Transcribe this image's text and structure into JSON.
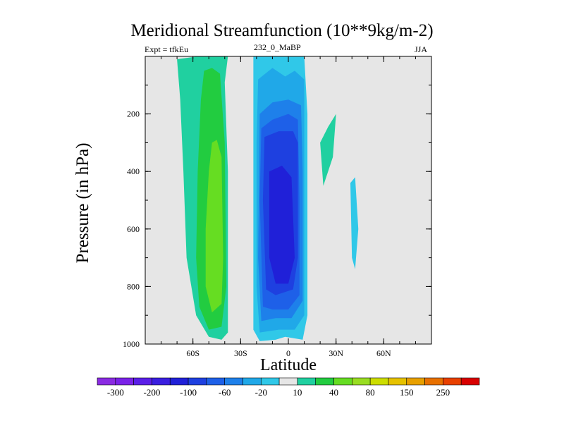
{
  "chart_data": {
    "type": "heatmap",
    "title": "Meridional Streamfunction (10**9kg/m-2)",
    "subtitle_left": "Expt = tfkEu",
    "subtitle_center": "232_0_MaBP",
    "subtitle_right": "JJA",
    "xlabel": "Latitude",
    "ylabel": "Pressure (in hPa)",
    "x_ticks": [
      {
        "value": -60,
        "label": "60S"
      },
      {
        "value": -30,
        "label": "30S"
      },
      {
        "value": 0,
        "label": "0"
      },
      {
        "value": 30,
        "label": "30N"
      },
      {
        "value": 60,
        "label": "60N"
      }
    ],
    "y_ticks": [
      {
        "value": 200,
        "label": "200"
      },
      {
        "value": 400,
        "label": "400"
      },
      {
        "value": 600,
        "label": "600"
      },
      {
        "value": 800,
        "label": "800"
      },
      {
        "value": 1000,
        "label": "1000"
      }
    ],
    "xlim": [
      -90,
      90
    ],
    "ylim": [
      1000,
      0
    ],
    "background_color": "#e6e6e6",
    "colorbar": {
      "levels": [
        -300,
        -250,
        -200,
        -150,
        -100,
        -80,
        -60,
        -40,
        -20,
        -10,
        10,
        20,
        40,
        60,
        80,
        100,
        150,
        200,
        250,
        300
      ],
      "colors": [
        "#8a2be2",
        "#7a22e8",
        "#5a1ee8",
        "#3a1ee0",
        "#2020d8",
        "#1e40e0",
        "#1e60e8",
        "#1e80ea",
        "#20a8e8",
        "#30c8e8",
        "#e6e6e6",
        "#20d0a0",
        "#22cc40",
        "#66dd22",
        "#99dd22",
        "#ccdd00",
        "#e6c200",
        "#e8a000",
        "#e87000",
        "#e84000",
        "#d80000"
      ],
      "labels": [
        {
          "after_index": 0,
          "label": "-300"
        },
        {
          "after_index": 2,
          "label": "-200"
        },
        {
          "after_index": 4,
          "label": "-100"
        },
        {
          "after_index": 6,
          "label": "-60"
        },
        {
          "after_index": 8,
          "label": "-20"
        },
        {
          "after_index": 10,
          "label": "10"
        },
        {
          "after_index": 12,
          "label": "40"
        },
        {
          "after_index": 14,
          "label": "80"
        },
        {
          "after_index": 16,
          "label": "150"
        },
        {
          "after_index": 18,
          "label": "250"
        }
      ]
    },
    "cells": [
      {
        "name": "southern-positive-cell",
        "values": [
          {
            "level": 10,
            "poly": [
              [
                -70,
                10
              ],
              [
                -57,
                0
              ],
              [
                -38,
                0
              ],
              [
                -40,
                90
              ],
              [
                -38,
                400
              ],
              [
                -38,
                960
              ],
              [
                -42,
                985
              ],
              [
                -50,
                975
              ],
              [
                -58,
                900
              ],
              [
                -64,
                700
              ],
              [
                -66,
                400
              ],
              [
                -68,
                150
              ],
              [
                -70,
                10
              ]
            ]
          },
          {
            "level": 20,
            "poly": [
              [
                -53,
                50
              ],
              [
                -48,
                40
              ],
              [
                -43,
                60
              ],
              [
                -40,
                300
              ],
              [
                -39,
                800
              ],
              [
                -42,
                940
              ],
              [
                -50,
                950
              ],
              [
                -56,
                870
              ],
              [
                -58,
                700
              ],
              [
                -57,
                400
              ],
              [
                -55,
                150
              ],
              [
                -53,
                50
              ]
            ]
          },
          {
            "level": 40,
            "poly": [
              [
                -48,
                300
              ],
              [
                -45,
                290
              ],
              [
                -42,
                350
              ],
              [
                -41,
                700
              ],
              [
                -42,
                860
              ],
              [
                -48,
                890
              ],
              [
                -52,
                800
              ],
              [
                -52,
                600
              ],
              [
                -50,
                400
              ],
              [
                -48,
                300
              ]
            ]
          }
        ]
      },
      {
        "name": "northern-positive-blob",
        "values": [
          {
            "level": 10,
            "poly": [
              [
                20,
                300
              ],
              [
                25,
                245
              ],
              [
                30,
                200
              ],
              [
                28,
                350
              ],
              [
                22,
                450
              ],
              [
                20,
                300
              ]
            ]
          }
        ]
      },
      {
        "name": "southern-negative-cell",
        "values": [
          {
            "level": -10,
            "poly": [
              [
                -22,
                0
              ],
              [
                10,
                0
              ],
              [
                12,
                200
              ],
              [
                12,
                900
              ],
              [
                9,
                985
              ],
              [
                -2,
                975
              ],
              [
                -8,
                985
              ],
              [
                -18,
                990
              ],
              [
                -22,
                950
              ],
              [
                -22,
                600
              ],
              [
                -22,
                200
              ],
              [
                -22,
                0
              ]
            ]
          },
          {
            "level": -20,
            "poly": [
              [
                -19,
                80
              ],
              [
                -10,
                40
              ],
              [
                -2,
                70
              ],
              [
                4,
                50
              ],
              [
                10,
                80
              ],
              [
                10,
                500
              ],
              [
                10,
                900
              ],
              [
                4,
                950
              ],
              [
                -6,
                950
              ],
              [
                -18,
                960
              ],
              [
                -20,
                800
              ],
              [
                -20,
                300
              ],
              [
                -19,
                80
              ]
            ]
          },
          {
            "level": -40,
            "poly": [
              [
                -18,
                200
              ],
              [
                -10,
                160
              ],
              [
                0,
                150
              ],
              [
                8,
                170
              ],
              [
                9,
                400
              ],
              [
                9,
                850
              ],
              [
                2,
                910
              ],
              [
                -8,
                910
              ],
              [
                -17,
                920
              ],
              [
                -19,
                700
              ],
              [
                -18,
                200
              ]
            ]
          },
          {
            "level": -60,
            "poly": [
              [
                -17,
                250
              ],
              [
                -10,
                220
              ],
              [
                0,
                200
              ],
              [
                6,
                220
              ],
              [
                7,
                500
              ],
              [
                7,
                830
              ],
              [
                0,
                880
              ],
              [
                -10,
                880
              ],
              [
                -16,
                870
              ],
              [
                -18,
                500
              ],
              [
                -17,
                250
              ]
            ]
          },
          {
            "level": -80,
            "poly": [
              [
                -15,
                280
              ],
              [
                -6,
                260
              ],
              [
                3,
                260
              ],
              [
                6,
                300
              ],
              [
                6,
                700
              ],
              [
                3,
                810
              ],
              [
                -8,
                830
              ],
              [
                -14,
                810
              ],
              [
                -16,
                500
              ],
              [
                -15,
                280
              ]
            ]
          },
          {
            "level": -100,
            "poly": [
              [
                -12,
                400
              ],
              [
                -4,
                380
              ],
              [
                2,
                420
              ],
              [
                4,
                700
              ],
              [
                0,
                790
              ],
              [
                -8,
                790
              ],
              [
                -12,
                700
              ],
              [
                -12,
                400
              ]
            ]
          }
        ]
      },
      {
        "name": "northern-negative-strip",
        "values": [
          {
            "level": -10,
            "poly": [
              [
                39,
                440
              ],
              [
                42,
                420
              ],
              [
                44,
                600
              ],
              [
                42,
                740
              ],
              [
                40,
                700
              ],
              [
                39,
                440
              ]
            ]
          }
        ]
      }
    ]
  }
}
